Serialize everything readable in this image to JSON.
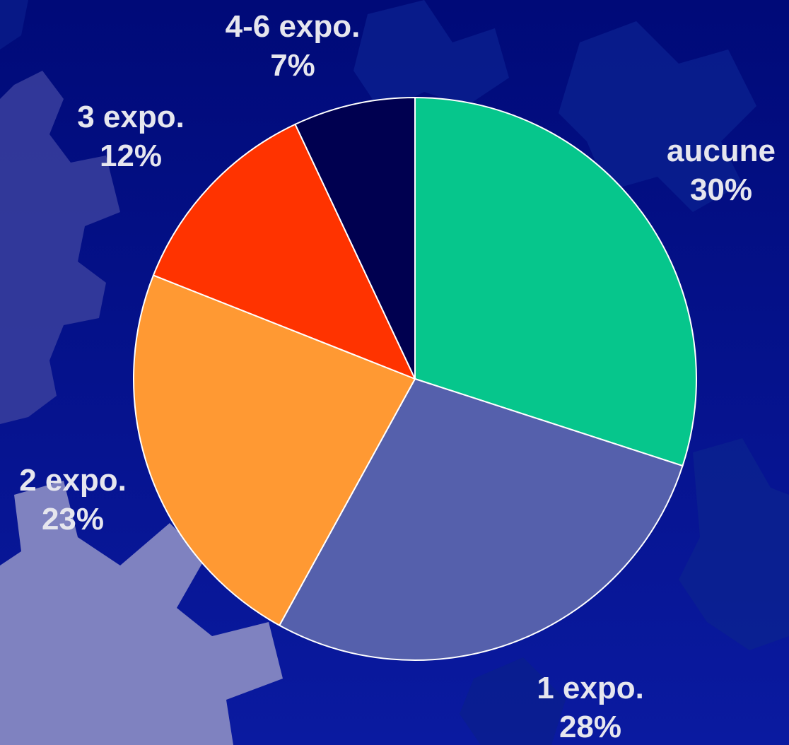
{
  "chart_data": {
    "type": "pie",
    "title": "",
    "slices": [
      {
        "label": "aucune",
        "value": 30,
        "value_label": "30%",
        "color": "#06c68c"
      },
      {
        "label": "1 expo.",
        "value": 28,
        "value_label": "28%",
        "color": "#5560ac"
      },
      {
        "label": "2 expo.",
        "value": 23,
        "value_label": "23%",
        "color": "#ff9933"
      },
      {
        "label": "3 expo.",
        "value": 12,
        "value_label": "12%",
        "color": "#ff3300"
      },
      {
        "label": "4-6 expo.",
        "value": 7,
        "value_label": "7%",
        "color": "#000050"
      }
    ],
    "start": "12 o'clock",
    "direction": "clockwise",
    "legend": "none",
    "slice_border_color": "#ffffff"
  },
  "background": {
    "gradient_top": "#000a78",
    "gradient_bottom": "#0a1aa0",
    "decoration": "gear shapes"
  }
}
